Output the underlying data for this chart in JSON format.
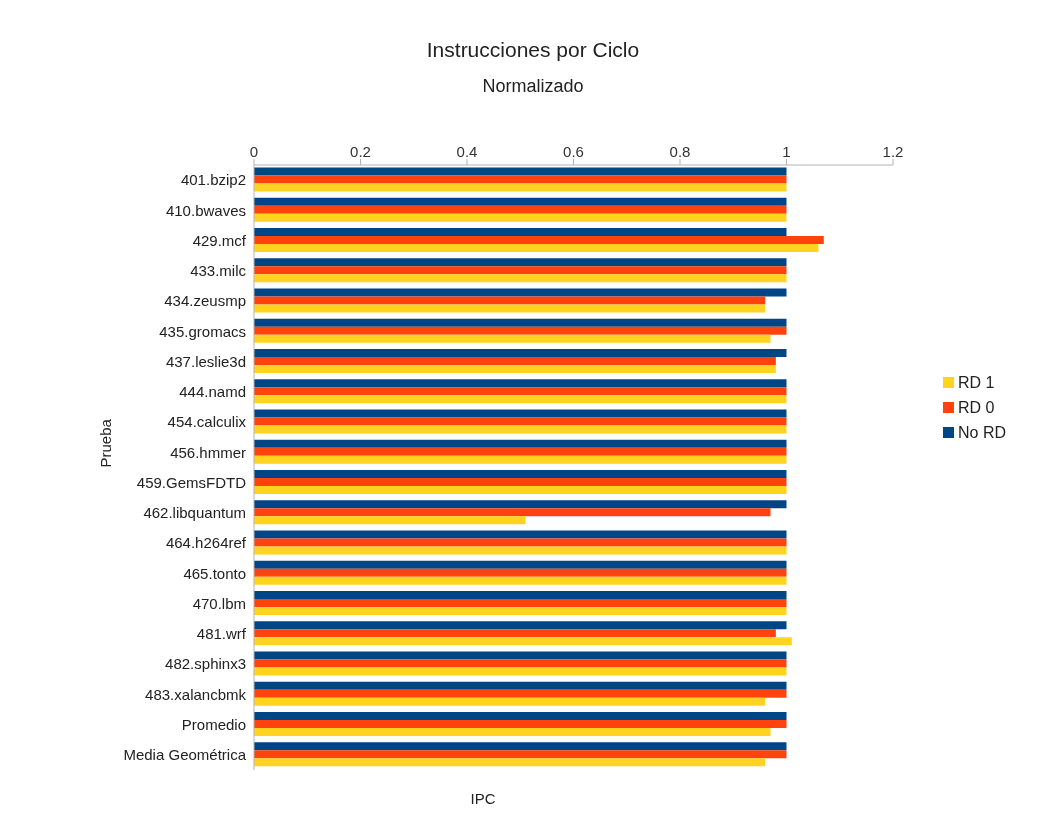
{
  "chart_data": {
    "type": "bar",
    "orientation": "horizontal",
    "title": "Instrucciones por Ciclo",
    "subtitle": "Normalizado",
    "xlabel": "IPC",
    "ylabel": "Prueba",
    "categories": [
      "401.bzip2",
      "410.bwaves",
      "429.mcf",
      "433.milc",
      "434.zeusmp",
      "435.gromacs",
      "437.leslie3d",
      "444.namd",
      "454.calculix",
      "456.hmmer",
      "459.GemsFDTD",
      "462.libquantum",
      "464.h264ref",
      "465.tonto",
      "470.lbm",
      "481.wrf",
      "482.sphinx3",
      "483.xalancbmk",
      "Promedio",
      "Media Geométrica"
    ],
    "series": [
      {
        "name": "No RD",
        "color": "#004586",
        "values": [
          1,
          1,
          1,
          1,
          1,
          1,
          1,
          1,
          1,
          1,
          1,
          1,
          1,
          1,
          1,
          1,
          1,
          1,
          1,
          1
        ]
      },
      {
        "name": "RD 0",
        "color": "#ff420e",
        "values": [
          1,
          1,
          1.07,
          1,
          0.96,
          1,
          0.98,
          1,
          1,
          1,
          1,
          0.97,
          1,
          1,
          1,
          0.98,
          1,
          1,
          1,
          1
        ]
      },
      {
        "name": "RD 1",
        "color": "#ffd320",
        "values": [
          1,
          1,
          1.06,
          1,
          0.96,
          0.97,
          0.98,
          1,
          1,
          1,
          1,
          0.51,
          1,
          1,
          1,
          1.01,
          1,
          0.96,
          0.97,
          0.96
        ]
      }
    ],
    "xlim": [
      0,
      1.2
    ],
    "xticks": [
      0,
      0.2,
      0.4,
      0.6,
      0.8,
      1,
      1.2
    ],
    "grid": false,
    "legend": "right"
  }
}
